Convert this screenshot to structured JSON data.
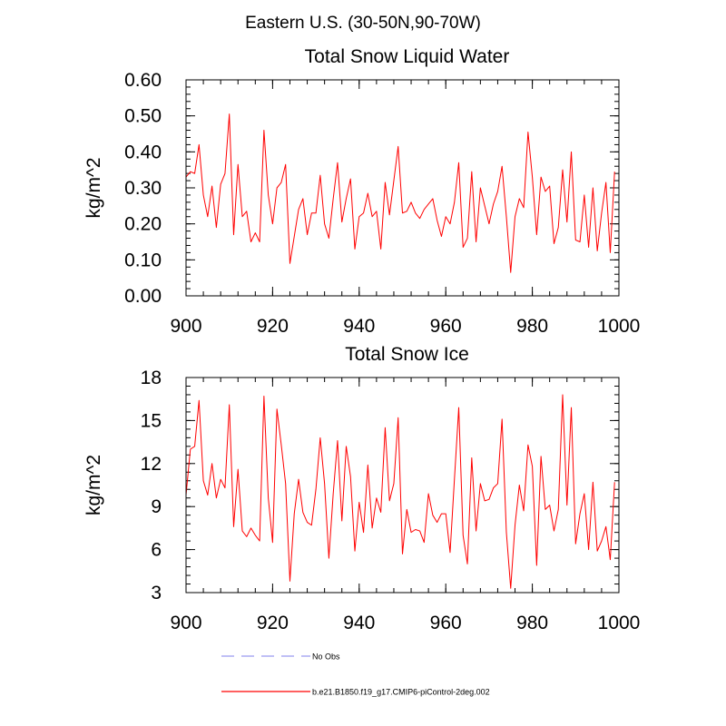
{
  "figure": {
    "region_title": "Eastern U.S. (30-50N,90-70W)"
  },
  "legend": {
    "items": [
      {
        "label": "No Obs",
        "color": "#9b9bf0",
        "style": "dashed"
      },
      {
        "label": "b.e21.B1850.f19_g17.CMIP6-piControl-2deg.002",
        "color": "#ff0000",
        "style": "solid"
      }
    ]
  },
  "chart_data": [
    {
      "type": "line",
      "title": "Total Snow Liquid Water",
      "xlabel": "",
      "ylabel": "kg/m^2",
      "xlim": [
        900,
        1000
      ],
      "ylim": [
        0,
        0.6
      ],
      "x_ticks": [
        900,
        920,
        940,
        960,
        980,
        1000
      ],
      "x_tick_labels": [
        "900",
        "920",
        "940",
        "960",
        "980",
        "1000"
      ],
      "y_ticks": [
        0,
        0.1,
        0.2,
        0.3,
        0.4,
        0.5,
        0.6
      ],
      "y_tick_labels": [
        "0.00",
        "0.10",
        "0.20",
        "0.30",
        "0.40",
        "0.50",
        "0.60"
      ],
      "series": [
        {
          "name": "b.e21.B1850.f19_g17.CMIP6-piControl-2deg.002",
          "color": "#ff0000",
          "x_start": 900,
          "x_step": 1,
          "values": [
            0.33,
            0.345,
            0.34,
            0.42,
            0.28,
            0.22,
            0.305,
            0.19,
            0.31,
            0.34,
            0.505,
            0.17,
            0.365,
            0.22,
            0.235,
            0.15,
            0.175,
            0.15,
            0.46,
            0.28,
            0.2,
            0.3,
            0.315,
            0.365,
            0.09,
            0.165,
            0.24,
            0.27,
            0.17,
            0.23,
            0.23,
            0.335,
            0.2,
            0.16,
            0.27,
            0.37,
            0.205,
            0.27,
            0.325,
            0.13,
            0.22,
            0.23,
            0.285,
            0.22,
            0.235,
            0.13,
            0.315,
            0.225,
            0.32,
            0.415,
            0.23,
            0.235,
            0.26,
            0.23,
            0.215,
            0.24,
            0.255,
            0.27,
            0.21,
            0.165,
            0.22,
            0.2,
            0.26,
            0.37,
            0.135,
            0.16,
            0.345,
            0.15,
            0.3,
            0.25,
            0.2,
            0.255,
            0.29,
            0.36,
            0.22,
            0.065,
            0.22,
            0.27,
            0.245,
            0.455,
            0.33,
            0.17,
            0.33,
            0.29,
            0.305,
            0.145,
            0.19,
            0.35,
            0.205,
            0.4,
            0.155,
            0.15,
            0.28,
            0.135,
            0.3,
            0.125,
            0.23,
            0.315,
            0.12,
            0.345
          ]
        }
      ]
    },
    {
      "type": "line",
      "title": "Total Snow Ice",
      "xlabel": "",
      "ylabel": "kg/m^2",
      "xlim": [
        900,
        1000
      ],
      "ylim": [
        3,
        18
      ],
      "x_ticks": [
        900,
        920,
        940,
        960,
        980,
        1000
      ],
      "x_tick_labels": [
        "900",
        "920",
        "940",
        "960",
        "980",
        "1000"
      ],
      "y_ticks": [
        3,
        6,
        9,
        12,
        15,
        18
      ],
      "y_tick_labels": [
        "3",
        "6",
        "9",
        "12",
        "15",
        "18"
      ],
      "series": [
        {
          "name": "b.e21.B1850.f19_g17.CMIP6-piControl-2deg.002",
          "color": "#ff0000",
          "x_start": 900,
          "x_step": 1,
          "values": [
            9.8,
            13,
            13.2,
            16.4,
            10.8,
            9.8,
            12,
            9.6,
            10.9,
            10.3,
            16.1,
            7.6,
            11.6,
            7.3,
            6.9,
            7.5,
            7,
            6.6,
            16.7,
            9.6,
            6.5,
            15.8,
            13.3,
            10.6,
            3.8,
            8.5,
            10.9,
            8.6,
            7.9,
            7.7,
            10.2,
            13.8,
            10.6,
            5.4,
            9.9,
            13.6,
            8,
            13.2,
            11.1,
            5.9,
            9.3,
            7.2,
            11.9,
            7.5,
            9.6,
            8.6,
            14.5,
            9.4,
            10.6,
            15.2,
            5.7,
            8.8,
            7.2,
            7.4,
            7.3,
            6.5,
            9.9,
            8.4,
            7.9,
            8.5,
            8.5,
            5.8,
            10.9,
            15.9,
            7,
            5,
            12.4,
            7.3,
            10.6,
            9.4,
            9.5,
            10.3,
            10.6,
            15.1,
            7.2,
            3.3,
            7.7,
            10.5,
            8.7,
            13.3,
            11.8,
            4.9,
            12.5,
            8.8,
            9.1,
            7.3,
            8.8,
            16.8,
            9.1,
            15.9,
            6.4,
            8.5,
            9.9,
            6,
            10.7,
            5.9,
            6.6,
            7.6,
            5.3,
            10.7
          ]
        }
      ]
    }
  ]
}
